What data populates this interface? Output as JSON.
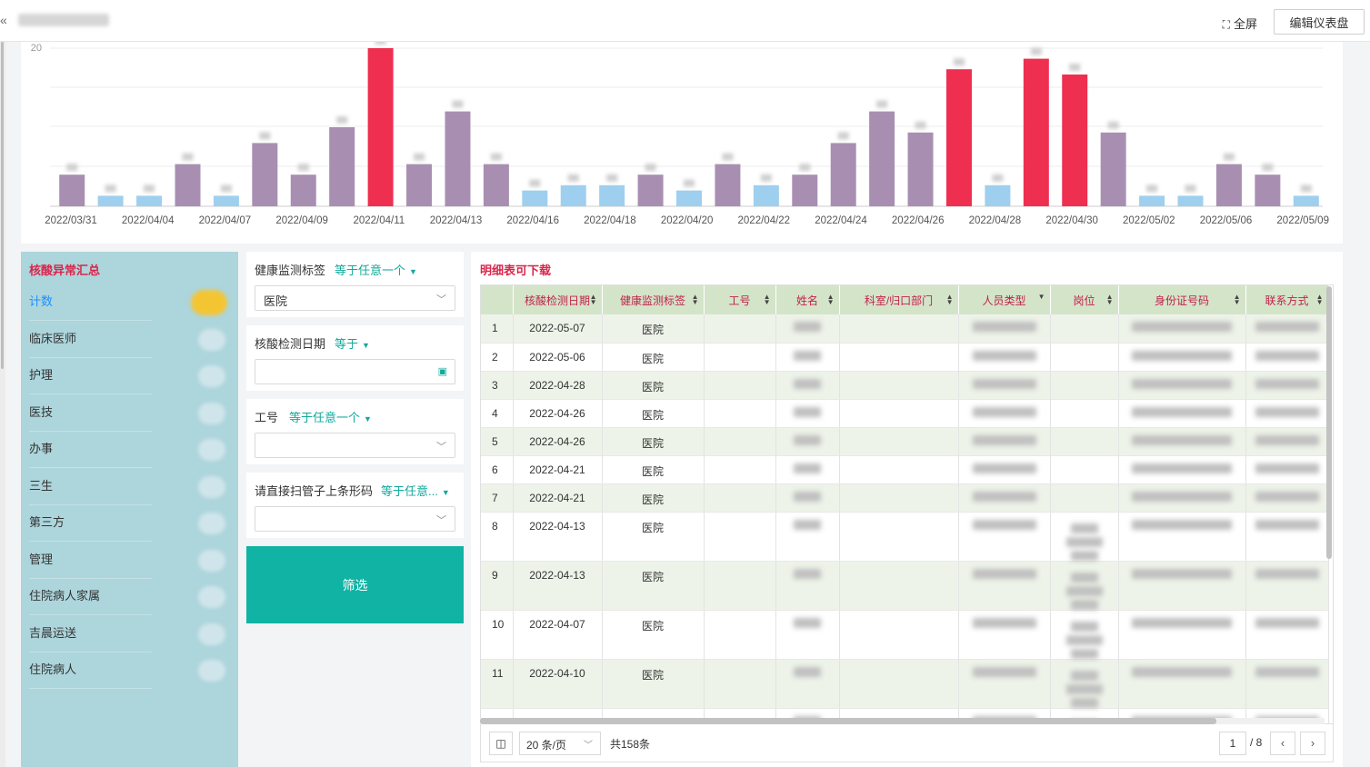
{
  "header": {
    "collapse_icon": "«",
    "fullscreen_label": "全屏",
    "edit_label": "编辑仪表盘"
  },
  "chart_data": {
    "type": "bar",
    "x_tick_labels": [
      "2022/03/31",
      "2022/04/04",
      "2022/04/07",
      "2022/04/09",
      "2022/04/11",
      "2022/04/13",
      "2022/04/16",
      "2022/04/18",
      "2022/04/20",
      "2022/04/22",
      "2022/04/24",
      "2022/04/26",
      "2022/04/28",
      "2022/04/30",
      "2022/05/02",
      "2022/05/06",
      "2022/05/09"
    ],
    "y_tick_labels": [
      "20"
    ],
    "values": [
      6,
      2,
      2,
      8,
      2,
      12,
      6,
      15,
      30,
      8,
      18,
      8,
      3,
      4,
      4,
      6,
      3,
      8,
      4,
      6,
      12,
      18,
      14,
      26,
      4,
      28,
      25,
      14,
      2,
      2,
      8,
      6,
      2
    ],
    "ylim": [
      0,
      30
    ],
    "colors": {
      "low": "#9fcfee",
      "mid": "#a88fb2",
      "high": "#ef2f50"
    }
  },
  "summary": {
    "title": "核酸异常汇总",
    "items": [
      {
        "label": "计数",
        "active": true
      },
      {
        "label": "临床医师"
      },
      {
        "label": "护理"
      },
      {
        "label": "医技"
      },
      {
        "label": "办事"
      },
      {
        "label": "三生"
      },
      {
        "label": "第三方"
      },
      {
        "label": "管理"
      },
      {
        "label": "住院病人家属"
      },
      {
        "label": "吉晨运送"
      },
      {
        "label": "住院病人"
      }
    ]
  },
  "filters": {
    "f1": {
      "label": "健康监测标签",
      "op": "等于任意一个",
      "value": "医院"
    },
    "f2": {
      "label": "核酸检测日期",
      "op": "等于",
      "value": ""
    },
    "f3": {
      "label": "工号",
      "op": "等于任意一个",
      "value": ""
    },
    "f4": {
      "label": "请直接扫管子上条形码",
      "op": "等于任意...",
      "value": ""
    },
    "submit": "筛选"
  },
  "detail": {
    "title": "明细表可下载",
    "columns": [
      "核酸检测日期",
      "健康监测标签",
      "工号",
      "姓名",
      "科室/归口部门",
      "人员类型",
      "岗位",
      "身份证号码",
      "联系方式"
    ],
    "rows": [
      {
        "idx": "1",
        "date": "2022-05-07",
        "tag": "医院"
      },
      {
        "idx": "2",
        "date": "2022-05-06",
        "tag": "医院"
      },
      {
        "idx": "3",
        "date": "2022-04-28",
        "tag": "医院"
      },
      {
        "idx": "4",
        "date": "2022-04-26",
        "tag": "医院"
      },
      {
        "idx": "5",
        "date": "2022-04-26",
        "tag": "医院"
      },
      {
        "idx": "6",
        "date": "2022-04-21",
        "tag": "医院"
      },
      {
        "idx": "7",
        "date": "2022-04-21",
        "tag": "医院"
      },
      {
        "idx": "8",
        "date": "2022-04-13",
        "tag": "医院"
      },
      {
        "idx": "9",
        "date": "2022-04-13",
        "tag": "医院"
      },
      {
        "idx": "10",
        "date": "2022-04-07",
        "tag": "医院"
      },
      {
        "idx": "11",
        "date": "2022-04-10",
        "tag": "医院"
      },
      {
        "idx": "12",
        "date": "2022-04-10",
        "tag": "医院"
      }
    ]
  },
  "pager": {
    "columns_icon": "column-toggle-icon",
    "page_size": "20 条/页",
    "total": "共158条",
    "current_page": "1",
    "page_count": "/ 8",
    "prev": "‹",
    "next": "›"
  }
}
